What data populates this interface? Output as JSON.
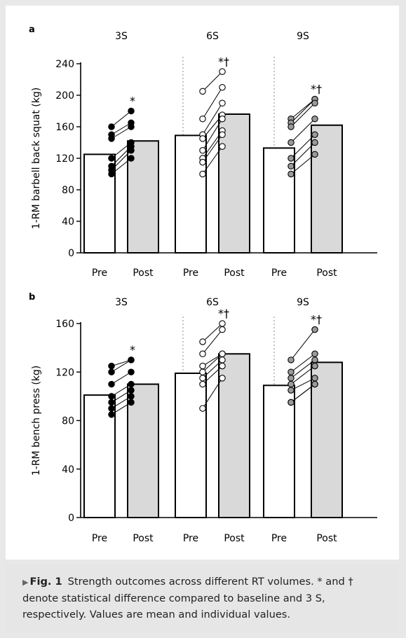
{
  "caption": {
    "label": "Fig. 1",
    "text": "Strength outcomes across different RT volumes. * and † denote statistical difference compared to baseline and 3 S, respectively. Values are mean and individual values."
  },
  "colors": {
    "pre_bar": "#ffffff",
    "post_bar": "#d9d9d9",
    "frame_background": "#ffffff",
    "caption_background": "#e6e6e6",
    "dots_3S": "#000000",
    "dots_6S": "#ffffff",
    "dots_9S": "#9a9a9a"
  },
  "chart_data": [
    {
      "type": "bar",
      "panel_label": "a",
      "ylabel": "1-RM barbell back squat (kg)",
      "ylim": [
        0,
        240
      ],
      "yticks": [
        0,
        40,
        80,
        120,
        160,
        200,
        240
      ],
      "categories": [
        "Pre",
        "Post"
      ],
      "groups": [
        {
          "name": "3S",
          "mean": [
            125,
            142
          ],
          "annotation": "*",
          "individuals": [
            [
              160,
              180
            ],
            [
              150,
              165
            ],
            [
              145,
              160
            ],
            [
              120,
              140
            ],
            [
              110,
              135
            ],
            [
              105,
              130
            ],
            [
              100,
              120
            ]
          ]
        },
        {
          "name": "6S",
          "mean": [
            149,
            176
          ],
          "annotation": "*†",
          "individuals": [
            [
              205,
              230
            ],
            [
              170,
              210
            ],
            [
              150,
              190
            ],
            [
              145,
              175
            ],
            [
              130,
              170
            ],
            [
              120,
              155
            ],
            [
              115,
              150
            ],
            [
              100,
              135
            ]
          ]
        },
        {
          "name": "9S",
          "mean": [
            133,
            162
          ],
          "annotation": "*†",
          "individuals": [
            [
              170,
              195
            ],
            [
              165,
              195
            ],
            [
              160,
              190
            ],
            [
              140,
              170
            ],
            [
              120,
              150
            ],
            [
              110,
              140
            ],
            [
              100,
              125
            ]
          ]
        }
      ]
    },
    {
      "type": "bar",
      "panel_label": "b",
      "ylabel": "1-RM bench press (kg)",
      "ylim": [
        0,
        160
      ],
      "yticks": [
        0,
        40,
        80,
        120,
        160
      ],
      "categories": [
        "Pre",
        "Post"
      ],
      "groups": [
        {
          "name": "3S",
          "mean": [
            101,
            110
          ],
          "annotation": "*",
          "individuals": [
            [
              125,
              130
            ],
            [
              120,
              130
            ],
            [
              110,
              120
            ],
            [
              100,
              110
            ],
            [
              95,
              105
            ],
            [
              90,
              100
            ],
            [
              85,
              95
            ]
          ]
        },
        {
          "name": "6S",
          "mean": [
            119,
            135
          ],
          "annotation": "*†",
          "individuals": [
            [
              145,
              160
            ],
            [
              135,
              155
            ],
            [
              125,
              135
            ],
            [
              120,
              135
            ],
            [
              115,
              130
            ],
            [
              110,
              125
            ],
            [
              90,
              115
            ]
          ]
        },
        {
          "name": "9S",
          "mean": [
            109,
            128
          ],
          "annotation": "*†",
          "individuals": [
            [
              130,
              155
            ],
            [
              120,
              135
            ],
            [
              115,
              130
            ],
            [
              110,
              125
            ],
            [
              105,
              115
            ],
            [
              95,
              110
            ],
            [
              95,
              110
            ]
          ]
        }
      ]
    }
  ]
}
